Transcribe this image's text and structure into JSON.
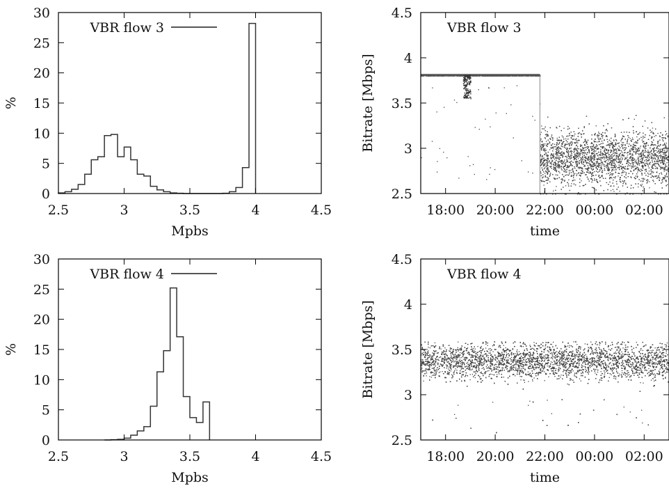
{
  "chart_data": [
    {
      "id": "hist3",
      "type": "histogram",
      "xlabel": "Mpbs",
      "ylabel": "%",
      "xlim": [
        2.5,
        4.5
      ],
      "ylim": [
        0,
        30
      ],
      "xticks": [
        "2.5",
        "3",
        "3.5",
        "4",
        "4.5"
      ],
      "yticks": [
        "0",
        "5",
        "10",
        "15",
        "20",
        "25",
        "30"
      ],
      "grid": false,
      "legend": {
        "position": "top-left",
        "label": "VBR flow 3"
      },
      "bin_width": 0.05,
      "bins_start": 2.5,
      "values": [
        0.1,
        0.3,
        0.7,
        1.5,
        3.2,
        5.6,
        6.1,
        9.6,
        9.8,
        6.1,
        7.7,
        5.6,
        3.2,
        2.9,
        1.2,
        0.6,
        0.3,
        0.1,
        0.05,
        0,
        0,
        0,
        0,
        0,
        0,
        0.05,
        0.3,
        1.0,
        4.3,
        28.2
      ]
    },
    {
      "id": "ts3",
      "type": "scatter",
      "xlabel": "time",
      "ylabel": "Bitrate [Mbps]",
      "xlim": [
        17.0,
        27.0
      ],
      "ylim": [
        2.5,
        4.5
      ],
      "xticks": [
        "18:00",
        "20:00",
        "22:00",
        "00:00",
        "02:00"
      ],
      "yticks": [
        "2.5",
        "3",
        "3.5",
        "4",
        "4.5"
      ],
      "grid": false,
      "legend": {
        "position": "top-left",
        "label": "VBR flow 3"
      },
      "segments": [
        {
          "x_start": 17.0,
          "x_end": 21.8,
          "level": 3.81,
          "spread": 0.015
        },
        {
          "x_start": 21.8,
          "x_end": 27.0,
          "level": 2.9,
          "spread": 0.28
        }
      ],
      "cluster": {
        "x_start": 18.7,
        "x_end": 19.0,
        "y_low": 3.55,
        "y_high": 3.81
      }
    },
    {
      "id": "hist4",
      "type": "histogram",
      "xlabel": "Mpbs",
      "ylabel": "%",
      "xlim": [
        2.5,
        4.5
      ],
      "ylim": [
        0,
        30
      ],
      "xticks": [
        "2.5",
        "3",
        "3.5",
        "4",
        "4.5"
      ],
      "yticks": [
        "0",
        "5",
        "10",
        "15",
        "20",
        "25",
        "30"
      ],
      "grid": false,
      "legend": {
        "position": "top-left",
        "label": "VBR flow 4"
      },
      "bin_width": 0.05,
      "bins_start": 2.85,
      "values": [
        0,
        0.05,
        0.1,
        0.3,
        0.8,
        1.5,
        2.2,
        5.6,
        11.3,
        14.8,
        25.2,
        17.1,
        7.2,
        3.7,
        2.9,
        6.3
      ]
    },
    {
      "id": "ts4",
      "type": "scatter",
      "xlabel": "time",
      "ylabel": "Bitrate [Mbps]",
      "xlim": [
        17.0,
        27.0
      ],
      "ylim": [
        2.5,
        4.5
      ],
      "xticks": [
        "18:00",
        "20:00",
        "22:00",
        "00:00",
        "02:00"
      ],
      "yticks": [
        "2.5",
        "3",
        "3.5",
        "4",
        "4.5"
      ],
      "grid": false,
      "legend": {
        "position": "top-left",
        "label": "VBR flow 4"
      },
      "segments": [
        {
          "x_start": 17.0,
          "x_end": 27.0,
          "level": 3.38,
          "spread": 0.18,
          "cap": 3.59
        }
      ]
    }
  ]
}
